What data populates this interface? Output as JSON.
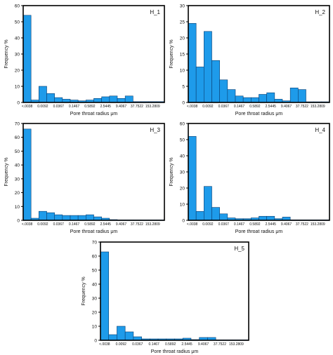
{
  "chart_data": [
    {
      "type": "bar",
      "title": "H_1",
      "xlabel": "Pore throat radius μm",
      "ylabel": "Frequency %",
      "ylim": [
        0,
        60
      ],
      "yticks": [
        0,
        10,
        20,
        30,
        40,
        50,
        60
      ],
      "xtick_labels": [
        "<.0038",
        "0.0092",
        "0.0367",
        "0.1467",
        "0.5892",
        "2.5445",
        "9.4067",
        "37.7522",
        "153.2809"
      ],
      "bar_color": "#1e9bea",
      "values": [
        54,
        1.5,
        10,
        5.5,
        3,
        2,
        1.5,
        1,
        1.5,
        2.5,
        3.5,
        4,
        2.5,
        4,
        0.5,
        0.5,
        0.5,
        0.5
      ]
    },
    {
      "type": "bar",
      "title": "H_2",
      "xlabel": "Pore throat radius μm",
      "ylabel": "Frequency %",
      "ylim": [
        0,
        30
      ],
      "yticks": [
        0,
        5,
        10,
        15,
        20,
        25,
        30
      ],
      "xtick_labels": [
        "<.0038",
        "0.0092",
        "0.0367",
        "0.1467",
        "0.5892",
        "2.5445",
        "9.4067",
        "37.7522",
        "153.2809"
      ],
      "bar_color": "#1e9bea",
      "values": [
        24.5,
        11,
        22,
        13,
        7,
        4,
        2,
        1.5,
        1.5,
        2.5,
        3,
        1,
        0.5,
        4.5,
        4,
        0.2,
        0.2,
        0.2
      ]
    },
    {
      "type": "bar",
      "title": "H_3",
      "xlabel": "Pore throat radius μm",
      "ylabel": "Frequency %",
      "ylim": [
        0,
        70
      ],
      "yticks": [
        0,
        10,
        20,
        30,
        40,
        50,
        60,
        70
      ],
      "xtick_labels": [
        "<.0038",
        "0.0092",
        "0.0367",
        "0.1467",
        "0.5892",
        "2.5445",
        "9.4067",
        "37.7522",
        "153.2809"
      ],
      "bar_color": "#1e9bea",
      "values": [
        66,
        1.5,
        6.5,
        5.5,
        4,
        3.5,
        3.5,
        3.5,
        4,
        2.5,
        1.5,
        0.5,
        0.3,
        0.3,
        0.3,
        0.3,
        0.3,
        0.3
      ]
    },
    {
      "type": "bar",
      "title": "H_4",
      "xlabel": "Pore throat radius μm",
      "ylabel": "Frequency %",
      "ylim": [
        0,
        60
      ],
      "yticks": [
        0,
        10,
        20,
        30,
        40,
        50,
        60
      ],
      "xtick_labels": [
        "<.0038",
        "0.0092",
        "0.0367",
        "0.1467",
        "0.5892",
        "2.5445",
        "9.4067",
        "37.7522",
        "153.2809"
      ],
      "bar_color": "#1e9bea",
      "values": [
        52,
        5.5,
        21,
        8,
        4,
        1.5,
        1,
        1,
        1.5,
        2.5,
        2.5,
        1,
        2,
        0.3,
        0.3,
        0.3,
        0.3,
        0.3
      ]
    },
    {
      "type": "bar",
      "title": "H_5",
      "xlabel": "Pore throat radius μm",
      "ylabel": "Frequency %",
      "ylim": [
        0,
        70
      ],
      "yticks": [
        0,
        10,
        20,
        30,
        40,
        50,
        60,
        70
      ],
      "xtick_labels": [
        "<.0038",
        "0.0092",
        "0.0367",
        "0.1467",
        "0.5892",
        "2.5445",
        "9.4067",
        "37.7522",
        "153.2809"
      ],
      "bar_color": "#1e9bea",
      "values": [
        63,
        4,
        10,
        6,
        2.5,
        1,
        1,
        1,
        1,
        1,
        1.5,
        0.5,
        2,
        2,
        0.3,
        0.3,
        0.3,
        0.3
      ]
    }
  ]
}
